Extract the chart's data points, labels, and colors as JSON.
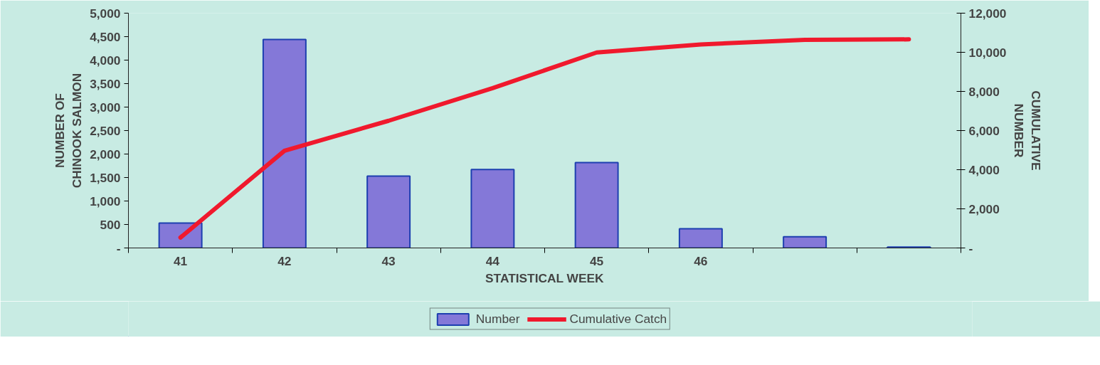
{
  "chart_data": {
    "type": "bar",
    "xlabel": "STATISTICAL WEEK",
    "ylabel": "NUMBER OF\nCHINOOK SALMON",
    "y2label": "CUMULATIVE\nNUMBER",
    "categories": [
      "41",
      "42",
      "43",
      "44",
      "45",
      "46",
      null,
      null
    ],
    "series": [
      {
        "name": "Number",
        "color": "#8478d8",
        "values": [
          530,
          4440,
          1530,
          1670,
          1820,
          410,
          240,
          20
        ]
      },
      {
        "name": "Cumulative Catch",
        "type": "line",
        "axis": "y2",
        "color": "#f0192d",
        "values": [
          530,
          4970,
          6500,
          8170,
          9990,
          10400,
          10640,
          10660
        ]
      }
    ],
    "ylim": [
      0,
      5000
    ],
    "yticks": [
      {
        "value": 0,
        "label": "-"
      },
      {
        "value": 500,
        "label": "500"
      },
      {
        "value": 1000,
        "label": "1,000"
      },
      {
        "value": 1500,
        "label": "1,500"
      },
      {
        "value": 2000,
        "label": "2,000"
      },
      {
        "value": 2500,
        "label": "2,500"
      },
      {
        "value": 3000,
        "label": "3,000"
      },
      {
        "value": 3500,
        "label": "3,500"
      },
      {
        "value": 4000,
        "label": "4,000"
      },
      {
        "value": 4500,
        "label": "4,500"
      },
      {
        "value": 5000,
        "label": "5,000"
      }
    ],
    "y2lim": [
      0,
      12000
    ],
    "y2ticks": [
      {
        "value": 0,
        "label": "-"
      },
      {
        "value": 2000,
        "label": "2,000"
      },
      {
        "value": 4000,
        "label": "4,000"
      },
      {
        "value": 6000,
        "label": "6,000"
      },
      {
        "value": 8000,
        "label": "8,000"
      },
      {
        "value": 10000,
        "label": "10,000"
      },
      {
        "value": 12000,
        "label": "12,000"
      }
    ],
    "grid": false,
    "legend": "bottom",
    "marker": "none",
    "line_style": "solid"
  }
}
